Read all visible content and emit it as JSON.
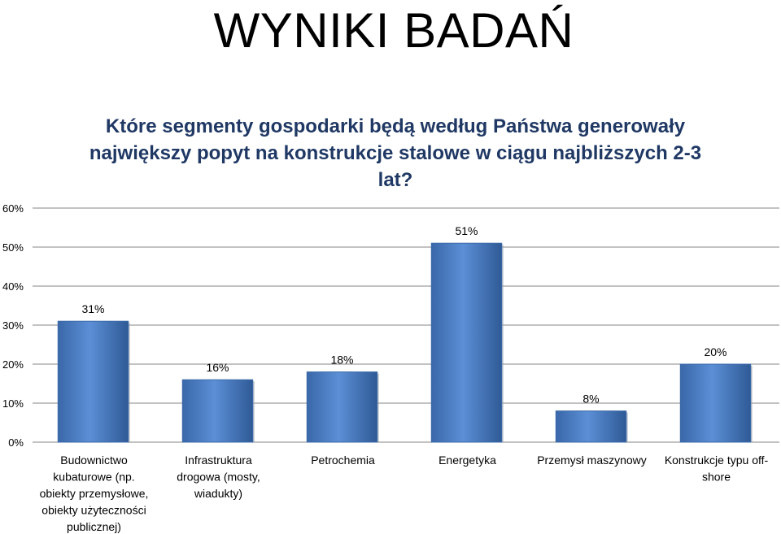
{
  "page": {
    "title": "WYNIKI BADAŃ"
  },
  "chart_data": {
    "type": "bar",
    "title_lines": [
      "Które segmenty gospodarki będą według Państwa generowały",
      "największy popyt na konstrukcje stalowe w ciągu najbliższych 2-3",
      "lat?"
    ],
    "categories": [
      [
        "Budownictwo",
        "kubaturowe (np.",
        "obiekty przemysłowe,",
        "obiekty użyteczności",
        "publicznej)"
      ],
      [
        "Infrastruktura",
        "drogowa (mosty,",
        "wiadukty)"
      ],
      [
        "Petrochemia"
      ],
      [
        "Energetyka"
      ],
      [
        "Przemysł maszynowy"
      ],
      [
        "Konstrukcje typu off-",
        "shore"
      ]
    ],
    "values": [
      31,
      16,
      18,
      51,
      8,
      20
    ],
    "data_labels": [
      "31%",
      "16%",
      "18%",
      "51%",
      "8%",
      "20%"
    ],
    "y_ticks": [
      "0%",
      "10%",
      "20%",
      "30%",
      "40%",
      "50%",
      "60%"
    ],
    "ylim": [
      0,
      60
    ],
    "grid": true,
    "legend": "none",
    "bar_color": "#4f81bd",
    "title_color": "#1f3864"
  }
}
